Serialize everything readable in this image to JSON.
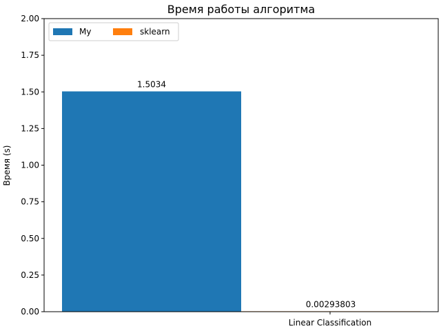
{
  "chart_data": {
    "type": "bar",
    "title": "Время работы алгоритма",
    "xlabel": "",
    "ylabel": "Время (s)",
    "categories": [
      "Linear Classification"
    ],
    "series": [
      {
        "name": "My",
        "values": [
          1.5034
        ],
        "label": "1.5034",
        "color": "#1f77b4"
      },
      {
        "name": "sklearn",
        "values": [
          0.00293803
        ],
        "label": "0.00293803",
        "color": "#ff7f0e"
      }
    ],
    "ylim": [
      0,
      2.0
    ],
    "yticks": [
      "0.00",
      "0.25",
      "0.50",
      "0.75",
      "1.00",
      "1.25",
      "1.50",
      "1.75",
      "2.00"
    ],
    "grid": false,
    "legend": {
      "placement": "top-left",
      "columns": 2
    }
  }
}
